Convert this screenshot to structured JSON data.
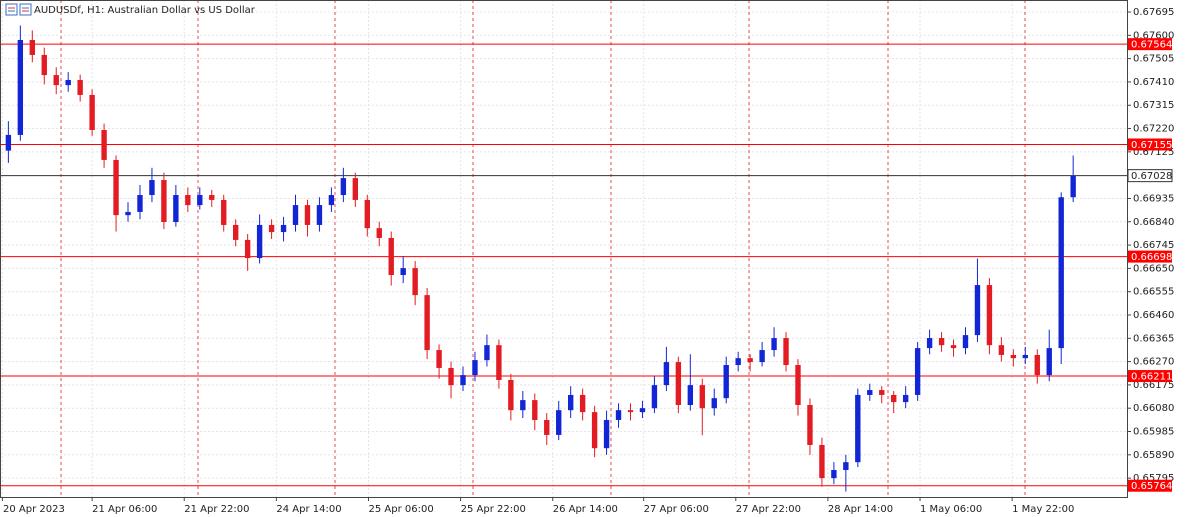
{
  "chart_data": {
    "type": "candlestick",
    "title": "AUDUSDf, H1:  Australian Dollar vs US Dollar",
    "up_color": "#1226d6",
    "down_color": "#e31c23",
    "level_color": "#ff0000",
    "grid": true,
    "ylim": [
      0.65718,
      0.67744
    ],
    "xlim": [
      -0.7,
      93.5
    ],
    "yticks": [
      0.67695,
      {
        "value": 0.676,
        "label": "0.67600"
      },
      0.67505,
      {
        "value": 0.6741,
        "label": "0.67410"
      },
      0.67315,
      {
        "value": 0.6722,
        "label": "0.67220"
      },
      0.67125,
      0.66935,
      {
        "value": 0.6684,
        "label": "0.66840"
      },
      0.66745,
      {
        "value": 0.6665,
        "label": "0.66650"
      },
      0.66555,
      {
        "value": 0.6646,
        "label": "0.66460"
      },
      0.66365,
      {
        "value": 0.6627,
        "label": "0.66270"
      },
      0.66175,
      {
        "value": 0.6608,
        "label": "0.66080"
      },
      0.65985,
      {
        "value": 0.6589,
        "label": "0.65890"
      },
      0.65795
    ],
    "xticks": [
      {
        "value": -0.5,
        "label": "20 Apr 2023"
      },
      {
        "value": 7,
        "label": "21 Apr 06:00"
      },
      {
        "value": 14.7,
        "label": "21 Apr 22:00"
      },
      {
        "value": 22.4,
        "label": "24 Apr 14:00"
      },
      {
        "value": 30.1,
        "label": "25 Apr 06:00"
      },
      {
        "value": 37.8,
        "label": "25 Apr 22:00"
      },
      {
        "value": 45.5,
        "label": "26 Apr 14:00"
      },
      {
        "value": 53.1,
        "label": "27 Apr 06:00"
      },
      {
        "value": 60.8,
        "label": "27 Apr 22:00"
      },
      {
        "value": 68.5,
        "label": "28 Apr 14:00"
      },
      {
        "value": 76.2,
        "label": "1 May 06:00"
      },
      {
        "value": 83.9,
        "label": "1 May 22:00"
      }
    ],
    "levels": [
      0.67564,
      0.67155,
      0.66698,
      0.66211,
      0.65764
    ],
    "current_price": 0.67028,
    "candles": [
      [
        0.6713,
        0.6725,
        0.6708,
        0.67194
      ],
      [
        0.67194,
        0.6764,
        0.6717,
        0.67581
      ],
      [
        0.67581,
        0.6762,
        0.6749,
        0.6752
      ],
      [
        0.6752,
        0.6755,
        0.674,
        0.67438
      ],
      [
        0.67438,
        0.6747,
        0.6736,
        0.67397
      ],
      [
        0.67397,
        0.6745,
        0.6737,
        0.67418
      ],
      [
        0.67418,
        0.6744,
        0.6733,
        0.67357
      ],
      [
        0.67357,
        0.6738,
        0.6719,
        0.67214
      ],
      [
        0.67214,
        0.6724,
        0.6706,
        0.67092
      ],
      [
        0.67092,
        0.6711,
        0.668,
        0.66867
      ],
      [
        0.66867,
        0.6692,
        0.6684,
        0.6688
      ],
      [
        0.6688,
        0.6699,
        0.6685,
        0.66949
      ],
      [
        0.66949,
        0.6706,
        0.6692,
        0.6701
      ],
      [
        0.6701,
        0.6704,
        0.6681,
        0.66839
      ],
      [
        0.66839,
        0.6699,
        0.6682,
        0.66949
      ],
      [
        0.66949,
        0.6698,
        0.6688,
        0.66908
      ],
      [
        0.66908,
        0.6698,
        0.6689,
        0.66949
      ],
      [
        0.66949,
        0.6697,
        0.669,
        0.66929
      ],
      [
        0.66929,
        0.6695,
        0.668,
        0.66827
      ],
      [
        0.66827,
        0.6685,
        0.6674,
        0.66766
      ],
      [
        0.66766,
        0.6679,
        0.6664,
        0.66692
      ],
      [
        0.66692,
        0.6687,
        0.6667,
        0.66827
      ],
      [
        0.66827,
        0.6685,
        0.6677,
        0.66798
      ],
      [
        0.66798,
        0.6686,
        0.6676,
        0.66827
      ],
      [
        0.66827,
        0.6695,
        0.668,
        0.66908
      ],
      [
        0.66908,
        0.6693,
        0.6678,
        0.66827
      ],
      [
        0.66827,
        0.6694,
        0.668,
        0.66908
      ],
      [
        0.66908,
        0.6698,
        0.6688,
        0.66949
      ],
      [
        0.66949,
        0.6706,
        0.6692,
        0.67018
      ],
      [
        0.67018,
        0.6704,
        0.669,
        0.66929
      ],
      [
        0.66929,
        0.6695,
        0.6678,
        0.66814
      ],
      [
        0.66814,
        0.6684,
        0.6674,
        0.66774
      ],
      [
        0.66774,
        0.668,
        0.6658,
        0.66623
      ],
      [
        0.66623,
        0.667,
        0.6659,
        0.66651
      ],
      [
        0.66651,
        0.6668,
        0.665,
        0.66541
      ],
      [
        0.66541,
        0.6657,
        0.6628,
        0.66317
      ],
      [
        0.66317,
        0.6634,
        0.662,
        0.66244
      ],
      [
        0.66244,
        0.6627,
        0.6612,
        0.66174
      ],
      [
        0.66174,
        0.6625,
        0.6615,
        0.66215
      ],
      [
        0.66215,
        0.6631,
        0.6619,
        0.66276
      ],
      [
        0.66276,
        0.6638,
        0.6625,
        0.66337
      ],
      [
        0.66337,
        0.6636,
        0.6616,
        0.66195
      ],
      [
        0.66195,
        0.6622,
        0.6603,
        0.66072
      ],
      [
        0.66072,
        0.6615,
        0.6604,
        0.66113
      ],
      [
        0.66113,
        0.6614,
        0.6599,
        0.66032
      ],
      [
        0.66032,
        0.6606,
        0.6593,
        0.65971
      ],
      [
        0.65971,
        0.6611,
        0.6595,
        0.66072
      ],
      [
        0.66072,
        0.6617,
        0.6604,
        0.66134
      ],
      [
        0.66134,
        0.6616,
        0.6603,
        0.66064
      ],
      [
        0.66064,
        0.6609,
        0.6588,
        0.65917
      ],
      [
        0.65917,
        0.6607,
        0.6589,
        0.66032
      ],
      [
        0.66032,
        0.661,
        0.66,
        0.66072
      ],
      [
        0.66072,
        0.661,
        0.6603,
        0.66064
      ],
      [
        0.66064,
        0.6611,
        0.6604,
        0.6608
      ],
      [
        0.6608,
        0.6621,
        0.6606,
        0.66174
      ],
      [
        0.66174,
        0.6633,
        0.6615,
        0.66268
      ],
      [
        0.66268,
        0.6629,
        0.6606,
        0.66093
      ],
      [
        0.66093,
        0.663,
        0.6607,
        0.66174
      ],
      [
        0.66174,
        0.662,
        0.6597,
        0.6608
      ],
      [
        0.6608,
        0.6616,
        0.6605,
        0.66121
      ],
      [
        0.66121,
        0.6629,
        0.661,
        0.66256
      ],
      [
        0.66256,
        0.6631,
        0.6623,
        0.66284
      ],
      [
        0.66284,
        0.663,
        0.6623,
        0.66268
      ],
      [
        0.66268,
        0.6635,
        0.6625,
        0.66317
      ],
      [
        0.66317,
        0.6641,
        0.6629,
        0.66366
      ],
      [
        0.66366,
        0.6639,
        0.6623,
        0.66256
      ],
      [
        0.66256,
        0.6628,
        0.6605,
        0.66093
      ],
      [
        0.66093,
        0.6612,
        0.6589,
        0.6593
      ],
      [
        0.6593,
        0.6596,
        0.6576,
        0.65795
      ],
      [
        0.65795,
        0.6586,
        0.6577,
        0.65828
      ],
      [
        0.65828,
        0.6589,
        0.6574,
        0.6586
      ],
      [
        0.6586,
        0.6616,
        0.6584,
        0.66134
      ],
      [
        0.66134,
        0.6618,
        0.6611,
        0.66154
      ],
      [
        0.66154,
        0.6617,
        0.661,
        0.66134
      ],
      [
        0.66134,
        0.6615,
        0.6606,
        0.66105
      ],
      [
        0.66105,
        0.6617,
        0.6608,
        0.66134
      ],
      [
        0.66134,
        0.6635,
        0.6611,
        0.66325
      ],
      [
        0.66325,
        0.664,
        0.663,
        0.66366
      ],
      [
        0.66366,
        0.6639,
        0.6631,
        0.66337
      ],
      [
        0.66337,
        0.6636,
        0.6629,
        0.66325
      ],
      [
        0.66325,
        0.6641,
        0.663,
        0.66378
      ],
      [
        0.66378,
        0.6669,
        0.6635,
        0.66582
      ],
      [
        0.66582,
        0.6661,
        0.663,
        0.66337
      ],
      [
        0.66337,
        0.6637,
        0.6627,
        0.66297
      ],
      [
        0.66297,
        0.6632,
        0.6625,
        0.66284
      ],
      [
        0.66284,
        0.6633,
        0.6626,
        0.66297
      ],
      [
        0.66297,
        0.6632,
        0.6618,
        0.66215
      ],
      [
        0.66215,
        0.664,
        0.6619,
        0.66325
      ],
      [
        0.66325,
        0.6696,
        0.6626,
        0.6694
      ],
      [
        0.6694,
        0.6711,
        0.6692,
        0.67028
      ]
    ]
  }
}
